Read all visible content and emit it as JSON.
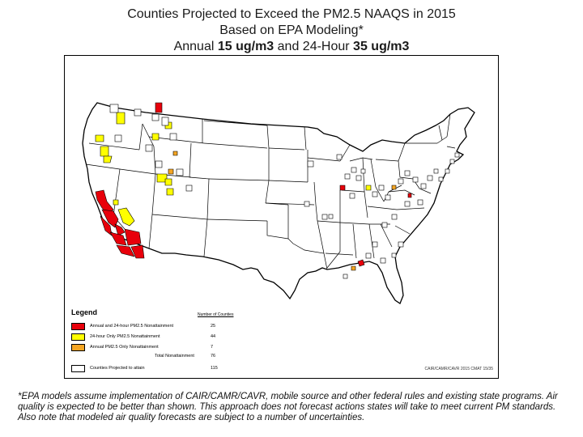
{
  "title": {
    "line1": "Counties Projected to Exceed the PM2.5 NAAQS in 2015",
    "line2": "Based on EPA Modeling*",
    "line3_prefix": "Annual ",
    "line3_annual": "15 ug/m3",
    "line3_mid": " and 24-Hour ",
    "line3_daily": "35 ug/m3"
  },
  "legend": {
    "title": "Legend",
    "count_header": "Number of Counties",
    "items": [
      {
        "label": "Annual and 24-hour PM2.5 Nonattainment",
        "count": "25",
        "color": "#e8000b"
      },
      {
        "label": "24-hour Only PM2.5 Nonattainment",
        "count": "44",
        "color": "#ffff00"
      },
      {
        "label": "Annual PM2.5 Only Nonattainment",
        "count": "7",
        "color": "#f5a623"
      }
    ],
    "total_label": "Total Nonattainment",
    "total_count": "76",
    "attain_label": "Counties Projected to attain",
    "attain_count": "115",
    "attain_color": "#ffffff"
  },
  "credit": "CAIR/CAMR/CAVR 2015 CMAT 15/35",
  "footnote": "*EPA models assume implementation of CAIR/CAMR/CAVR, mobile source and other federal rules and existing state programs. Air quality is expected to be better than shown. This approach does not forecast actions states will take to meet current PM standards. Also note that modeled air quality forecasts are subject to a number of uncertainties.",
  "colors": {
    "both": "#e8000b",
    "daily_only": "#ffff00",
    "annual_only": "#f5a623",
    "attain": "#ffffff",
    "state_lines": "#000000"
  }
}
